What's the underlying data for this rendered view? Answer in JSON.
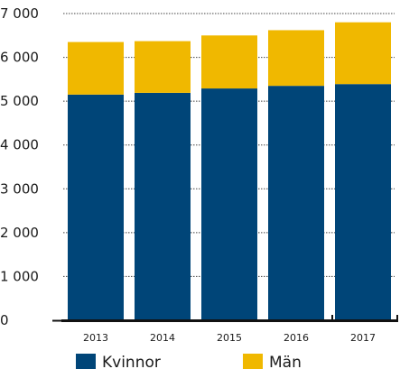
{
  "chart_data": {
    "type": "bar",
    "stacked": true,
    "categories": [
      "2013",
      "2014",
      "2015",
      "2016",
      "2017"
    ],
    "series": [
      {
        "name": "Kvinnor",
        "color": "#004578",
        "values": [
          5150,
          5190,
          5290,
          5350,
          5390
        ]
      },
      {
        "name": "Män",
        "color": "#f0b800",
        "values": [
          1200,
          1180,
          1210,
          1270,
          1410
        ]
      }
    ],
    "y_ticks": [
      {
        "value": 0,
        "label": "0"
      },
      {
        "value": 1000,
        "label": "1 000"
      },
      {
        "value": 2000,
        "label": "2 000"
      },
      {
        "value": 3000,
        "label": "3 000"
      },
      {
        "value": 4000,
        "label": "4 000"
      },
      {
        "value": 5000,
        "label": "5 000"
      },
      {
        "value": 6000,
        "label": "6 000"
      },
      {
        "value": 7000,
        "label": "7 000"
      }
    ],
    "ylim": [
      0,
      7000
    ],
    "grid": "dotted horizontal",
    "legend_position": "bottom"
  }
}
